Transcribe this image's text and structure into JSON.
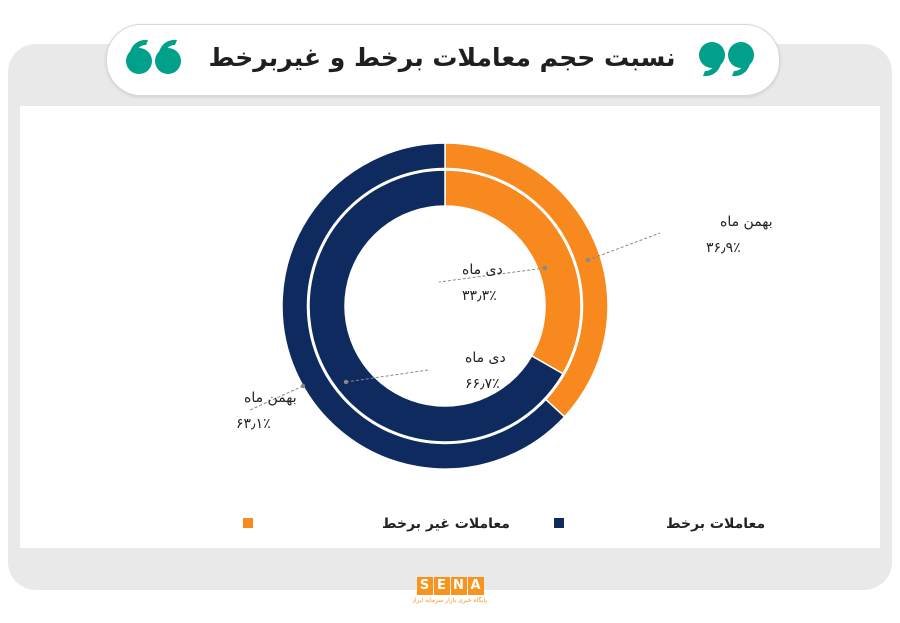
{
  "title": "نسبت حجم معاملات برخط و غیربرخط",
  "colors": {
    "online": "#0e2a5e",
    "offline": "#f7891e",
    "quote_accent": "#00a08a"
  },
  "chart_data": {
    "type": "pie",
    "rings": [
      {
        "ring": "outer",
        "label": "بهمن ماه",
        "slices": [
          {
            "series": "معاملات غیر برخط",
            "value": 36.9,
            "value_label": "۳۶٫۹٪"
          },
          {
            "series": "معاملات برخط",
            "value": 63.1,
            "value_label": "۶۳٫۱٪"
          }
        ]
      },
      {
        "ring": "inner",
        "label": "دی ماه",
        "slices": [
          {
            "series": "معاملات غیر برخط",
            "value": 33.3,
            "value_label": "۳۳٫۳٪"
          },
          {
            "series": "معاملات برخط",
            "value": 66.7,
            "value_label": "۶۶٫۷٪"
          }
        ]
      }
    ],
    "legend": [
      "معاملات برخط",
      "معاملات غیر برخط"
    ],
    "legend_position": "bottom"
  },
  "footer": {
    "logo_letters": [
      "S",
      "E",
      "N",
      "A"
    ],
    "logo_subtitle": "پایگاه خبری بازار سرمایه ایران"
  }
}
